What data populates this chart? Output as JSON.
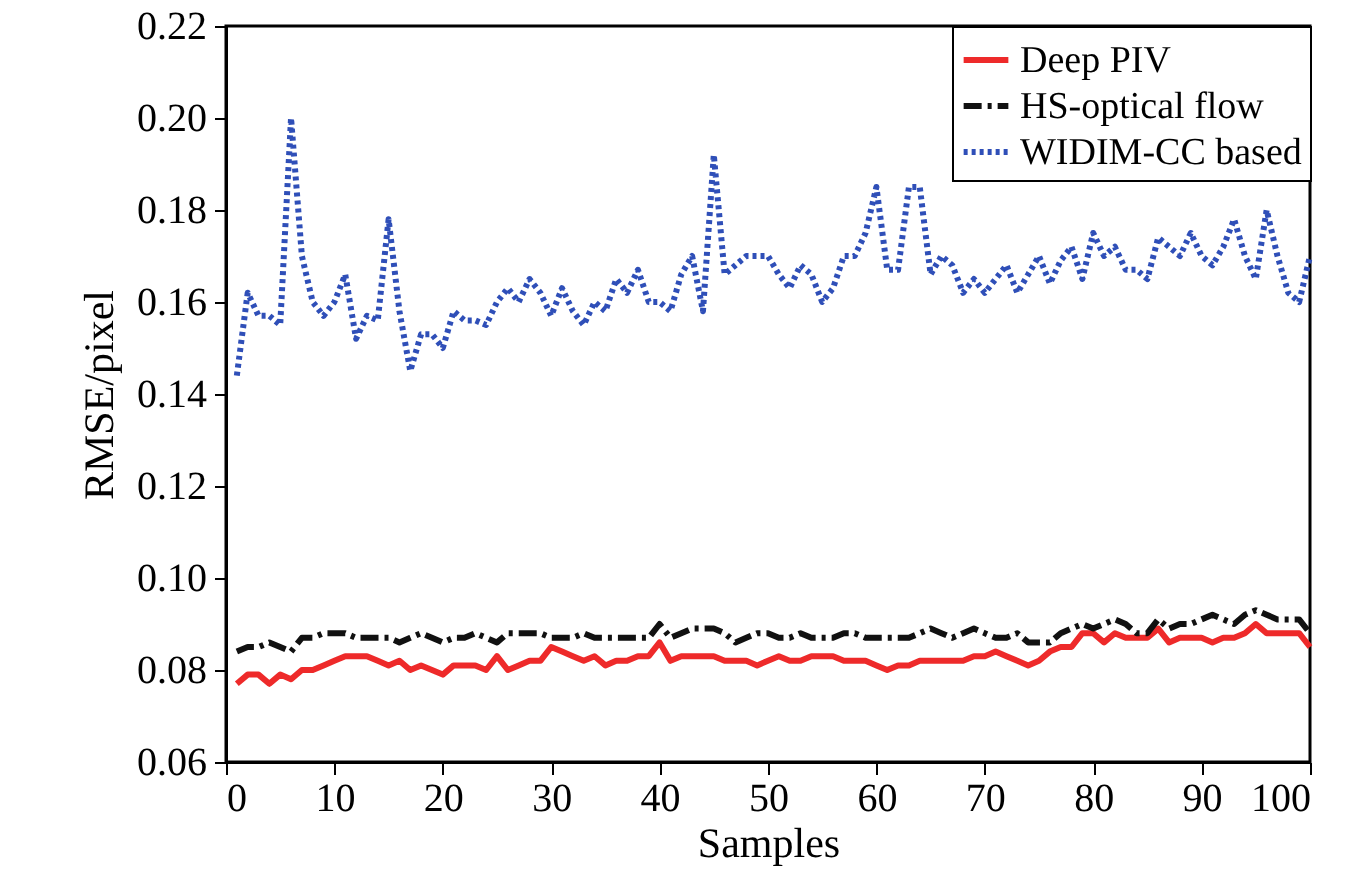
{
  "chart_data": {
    "type": "line",
    "xlabel": "Samples",
    "ylabel": "RMSE/pixel",
    "x": [
      1,
      2,
      3,
      4,
      5,
      6,
      7,
      8,
      9,
      10,
      11,
      12,
      13,
      14,
      15,
      16,
      17,
      18,
      19,
      20,
      21,
      22,
      23,
      24,
      25,
      26,
      27,
      28,
      29,
      30,
      31,
      32,
      33,
      34,
      35,
      36,
      37,
      38,
      39,
      40,
      41,
      42,
      43,
      44,
      45,
      46,
      47,
      48,
      49,
      50,
      51,
      52,
      53,
      54,
      55,
      56,
      57,
      58,
      59,
      60,
      61,
      62,
      63,
      64,
      65,
      66,
      67,
      68,
      69,
      70,
      71,
      72,
      73,
      74,
      75,
      76,
      77,
      78,
      79,
      80,
      81,
      82,
      83,
      84,
      85,
      86,
      87,
      88,
      89,
      90,
      91,
      92,
      93,
      94,
      95,
      96,
      97,
      98,
      99,
      100
    ],
    "series": [
      {
        "name": "Deep PIV",
        "color": "#ee2a2a",
        "line_style": "solid",
        "values": [
          0.077,
          0.079,
          0.079,
          0.077,
          0.079,
          0.078,
          0.08,
          0.08,
          0.081,
          0.082,
          0.083,
          0.083,
          0.083,
          0.082,
          0.081,
          0.082,
          0.08,
          0.081,
          0.08,
          0.079,
          0.081,
          0.081,
          0.081,
          0.08,
          0.083,
          0.08,
          0.081,
          0.082,
          0.082,
          0.085,
          0.084,
          0.083,
          0.082,
          0.083,
          0.081,
          0.082,
          0.082,
          0.083,
          0.083,
          0.086,
          0.082,
          0.083,
          0.083,
          0.083,
          0.083,
          0.082,
          0.082,
          0.082,
          0.081,
          0.082,
          0.083,
          0.082,
          0.082,
          0.083,
          0.083,
          0.083,
          0.082,
          0.082,
          0.082,
          0.081,
          0.08,
          0.081,
          0.081,
          0.082,
          0.082,
          0.082,
          0.082,
          0.082,
          0.083,
          0.083,
          0.084,
          0.083,
          0.082,
          0.081,
          0.082,
          0.084,
          0.085,
          0.085,
          0.088,
          0.088,
          0.086,
          0.088,
          0.087,
          0.087,
          0.087,
          0.089,
          0.086,
          0.087,
          0.087,
          0.087,
          0.086,
          0.087,
          0.087,
          0.088,
          0.09,
          0.088,
          0.088,
          0.088,
          0.088,
          0.085
        ]
      },
      {
        "name": "HS-optical flow",
        "color": "#111111",
        "line_style": "dashed",
        "values": [
          0.084,
          0.085,
          0.085,
          0.086,
          0.085,
          0.084,
          0.087,
          0.087,
          0.088,
          0.088,
          0.088,
          0.087,
          0.087,
          0.087,
          0.087,
          0.086,
          0.087,
          0.088,
          0.087,
          0.086,
          0.087,
          0.087,
          0.088,
          0.087,
          0.086,
          0.088,
          0.088,
          0.088,
          0.088,
          0.087,
          0.087,
          0.087,
          0.088,
          0.087,
          0.087,
          0.087,
          0.087,
          0.087,
          0.087,
          0.09,
          0.087,
          0.088,
          0.089,
          0.089,
          0.089,
          0.088,
          0.086,
          0.087,
          0.088,
          0.088,
          0.087,
          0.087,
          0.088,
          0.087,
          0.087,
          0.087,
          0.088,
          0.088,
          0.087,
          0.087,
          0.087,
          0.087,
          0.087,
          0.088,
          0.089,
          0.088,
          0.087,
          0.088,
          0.089,
          0.088,
          0.087,
          0.087,
          0.088,
          0.086,
          0.086,
          0.086,
          0.088,
          0.089,
          0.09,
          0.089,
          0.09,
          0.091,
          0.09,
          0.088,
          0.088,
          0.091,
          0.089,
          0.09,
          0.09,
          0.091,
          0.092,
          0.091,
          0.09,
          0.092,
          0.093,
          0.092,
          0.091,
          0.091,
          0.091,
          0.088
        ]
      },
      {
        "name": "WIDIM-CC based",
        "color": "#2f4fb8",
        "line_style": "dotted",
        "values": [
          0.144,
          0.162,
          0.157,
          0.157,
          0.155,
          0.2,
          0.17,
          0.16,
          0.157,
          0.16,
          0.166,
          0.152,
          0.157,
          0.156,
          0.178,
          0.158,
          0.145,
          0.153,
          0.153,
          0.15,
          0.158,
          0.156,
          0.156,
          0.155,
          0.16,
          0.163,
          0.16,
          0.165,
          0.162,
          0.157,
          0.163,
          0.158,
          0.155,
          0.16,
          0.158,
          0.165,
          0.162,
          0.167,
          0.16,
          0.16,
          0.158,
          0.166,
          0.17,
          0.158,
          0.192,
          0.166,
          0.168,
          0.17,
          0.17,
          0.17,
          0.166,
          0.163,
          0.168,
          0.166,
          0.16,
          0.163,
          0.17,
          0.17,
          0.175,
          0.185,
          0.167,
          0.167,
          0.185,
          0.185,
          0.166,
          0.17,
          0.168,
          0.162,
          0.165,
          0.162,
          0.165,
          0.168,
          0.162,
          0.166,
          0.17,
          0.164,
          0.169,
          0.172,
          0.165,
          0.175,
          0.17,
          0.172,
          0.167,
          0.167,
          0.165,
          0.174,
          0.172,
          0.17,
          0.175,
          0.17,
          0.168,
          0.172,
          0.178,
          0.17,
          0.165,
          0.18,
          0.17,
          0.162,
          0.16,
          0.17
        ]
      }
    ],
    "xlim": [
      0,
      100
    ],
    "xticks": [
      0,
      10,
      20,
      30,
      40,
      50,
      60,
      70,
      80,
      90,
      100
    ],
    "ylim": [
      0.06,
      0.22
    ],
    "yticks": [
      0.06,
      0.08,
      {
        "value": 0.1,
        "label": "0.10"
      },
      0.12,
      0.14,
      0.16,
      0.18,
      {
        "value": 0.2,
        "label": "0.20"
      },
      0.22
    ],
    "legend": "top right",
    "grid": false,
    "marker": "none"
  }
}
